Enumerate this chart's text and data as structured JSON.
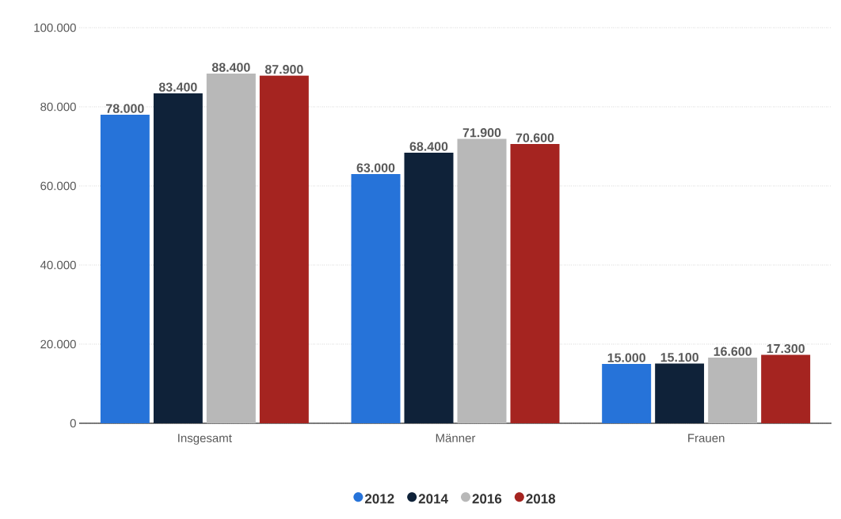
{
  "chart_data": {
    "type": "bar",
    "categories": [
      "Insgesamt",
      "Männer",
      "Frauen"
    ],
    "series": [
      {
        "name": "2012",
        "color": "#2673d9",
        "values": [
          78000,
          63000,
          15000
        ],
        "value_labels": [
          "78.000",
          "63.000",
          "15.000"
        ]
      },
      {
        "name": "2014",
        "color": "#0f2239",
        "values": [
          83400,
          68400,
          15100
        ],
        "value_labels": [
          "83.400",
          "68.400",
          "15.100"
        ]
      },
      {
        "name": "2016",
        "color": "#b8b8b8",
        "values": [
          88400,
          71900,
          16600
        ],
        "value_labels": [
          "88.400",
          "71.900",
          "16.600"
        ]
      },
      {
        "name": "2018",
        "color": "#a52420",
        "values": [
          87900,
          70600,
          17300
        ],
        "value_labels": [
          "87.900",
          "70.600",
          "17.300"
        ]
      }
    ],
    "ylim": [
      0,
      100000
    ],
    "yticks": [
      0,
      {
        "value": 20000,
        "label": "20.000"
      },
      {
        "value": 40000,
        "label": "40.000"
      },
      {
        "value": 60000,
        "label": "60.000"
      },
      {
        "value": 80000,
        "label": "80.000"
      },
      {
        "value": 100000,
        "label": "100.000"
      }
    ],
    "grid": "y",
    "legend": "bottom",
    "marker": "circle"
  }
}
